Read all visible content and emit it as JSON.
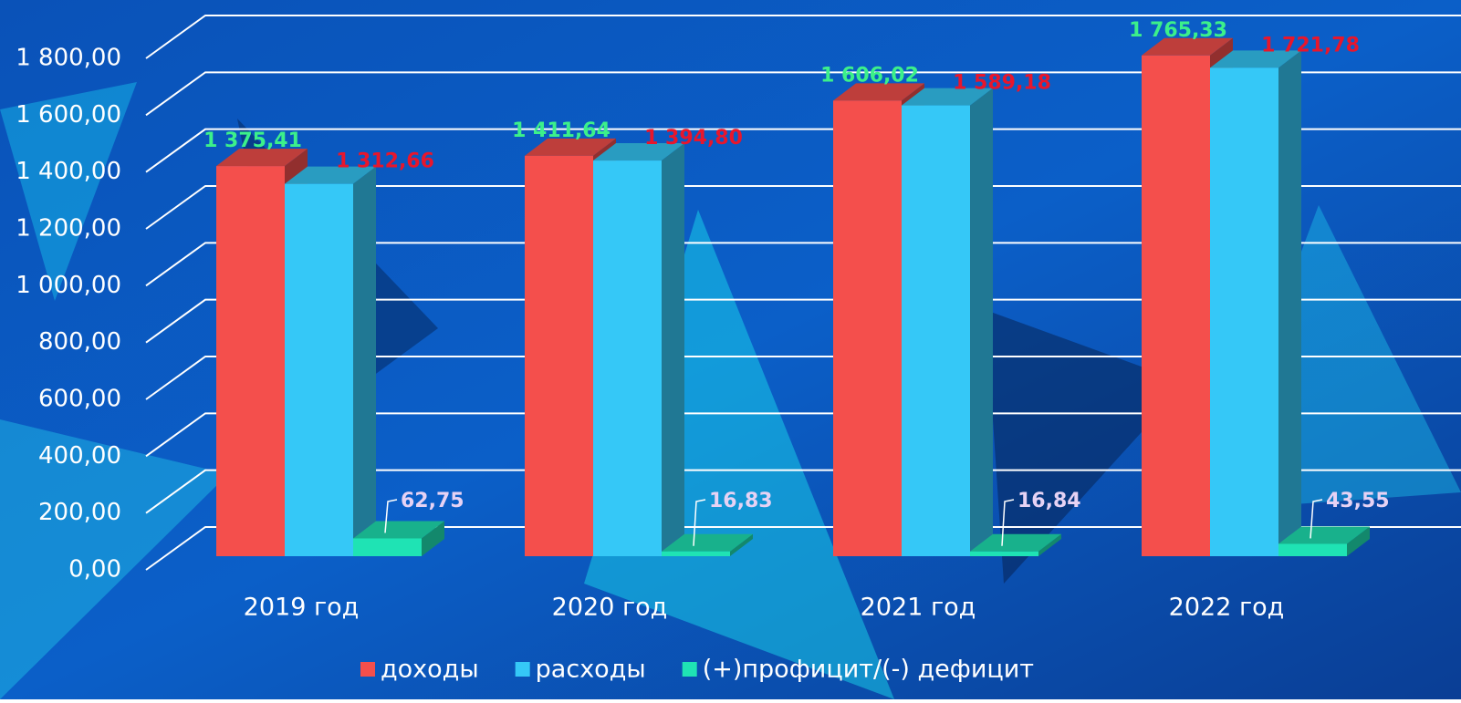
{
  "chart_data": {
    "type": "bar3d",
    "categories": [
      "2019 год",
      "2020 год",
      "2021 год",
      "2022 год"
    ],
    "series": [
      {
        "name": "доходы",
        "color": "#f44f4c",
        "values": [
          1375.41,
          1411.64,
          1606.02,
          1765.33
        ],
        "value_labels": [
          "1 375,41",
          "1 411,64",
          "1 606,02",
          "1 765,33"
        ],
        "label_color": "#3cf08a"
      },
      {
        "name": "расходы",
        "color": "#35c8f7",
        "values": [
          1312.66,
          1394.8,
          1589.18,
          1721.78
        ],
        "value_labels": [
          "1 312,66",
          "1 394,80",
          "1 589,18",
          "1 721,78"
        ],
        "label_color": "#e8162c"
      },
      {
        "name": "(+)профицит/(-) дефицит",
        "color": "#1fe3b4",
        "values": [
          62.75,
          16.83,
          16.84,
          43.55
        ],
        "value_labels": [
          "62,75",
          "16,83",
          "16,84",
          "43,55"
        ],
        "label_color": "#e6d2f4"
      }
    ],
    "ylim": [
      0,
      1800
    ],
    "yticks": [
      {
        "value": 0,
        "label": "0,00"
      },
      {
        "value": 200,
        "label": "200,00"
      },
      {
        "value": 400,
        "label": "400,00"
      },
      {
        "value": 600,
        "label": "600,00"
      },
      {
        "value": 800,
        "label": "800,00"
      },
      {
        "value": 1000,
        "label": "1 000,00"
      },
      {
        "value": 1200,
        "label": "1 200,00"
      },
      {
        "value": 1400,
        "label": "1 400,00"
      },
      {
        "value": 1600,
        "label": "1 600,00"
      },
      {
        "value": 1800,
        "label": "1 800,00"
      }
    ],
    "grid": true,
    "legend": "bottom"
  }
}
